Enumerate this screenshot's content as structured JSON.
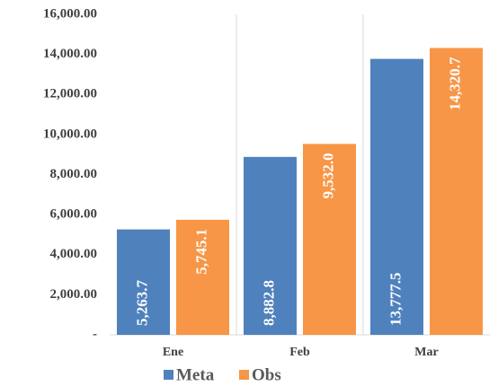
{
  "chart_data": {
    "type": "bar",
    "categories": [
      "Ene",
      "Feb",
      "Mar"
    ],
    "series": [
      {
        "name": "Meta",
        "color": "#4f81bd",
        "values": [
          5263.7,
          8882.8,
          13777.5
        ],
        "value_labels": [
          "5,263.7",
          "8,882.8",
          "13,777.5"
        ],
        "label_position": "inside_base"
      },
      {
        "name": "Obs",
        "color": "#f79646",
        "values": [
          5745.1,
          9532.0,
          14320.7
        ],
        "value_labels": [
          "5,745.1",
          "9,532.0",
          "14,320.7"
        ],
        "label_position": "inside_end"
      }
    ],
    "ylim": [
      0,
      16000
    ],
    "yticks": [
      {
        "value": 0,
        "label": "-"
      },
      {
        "value": 2000,
        "label": "2,000.00"
      },
      {
        "value": 4000,
        "label": "4,000.00"
      },
      {
        "value": 6000,
        "label": "6,000.00"
      },
      {
        "value": 8000,
        "label": "8,000.00"
      },
      {
        "value": 10000,
        "label": "10,000.00"
      },
      {
        "value": 12000,
        "label": "12,000.00"
      },
      {
        "value": 14000,
        "label": "14,000.00"
      },
      {
        "value": 16000,
        "label": "16,000.00"
      }
    ],
    "grid": false,
    "category_separators": true,
    "legend": "bottom"
  }
}
